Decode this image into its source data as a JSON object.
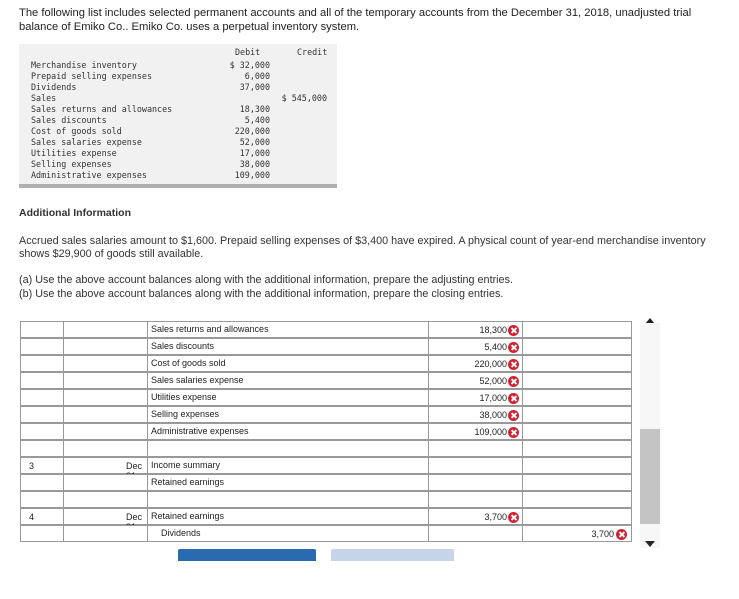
{
  "intro": "The following list includes selected permanent accounts and all of the temporary accounts from the December 31, 2018, unadjusted trial balance of Emiko Co.. Emiko Co. uses a perpetual inventory system.",
  "trial_balance": {
    "debit_header": "Debit",
    "credit_header": "Credit",
    "rows": [
      {
        "account": "Merchandise inventory",
        "debit": "$ 32,000",
        "credit": ""
      },
      {
        "account": "Prepaid selling expenses",
        "debit": "6,000",
        "credit": ""
      },
      {
        "account": "Dividends",
        "debit": "37,000",
        "credit": ""
      },
      {
        "account": "Sales",
        "debit": "",
        "credit": "$ 545,000"
      },
      {
        "account": "Sales returns and allowances",
        "debit": "18,300",
        "credit": ""
      },
      {
        "account": "Sales discounts",
        "debit": "5,400",
        "credit": ""
      },
      {
        "account": "Cost of goods sold",
        "debit": "220,000",
        "credit": ""
      },
      {
        "account": "Sales salaries expense",
        "debit": "52,000",
        "credit": ""
      },
      {
        "account": "Utilities expense",
        "debit": "17,000",
        "credit": ""
      },
      {
        "account": "Selling expenses",
        "debit": "38,000",
        "credit": ""
      },
      {
        "account": "Administrative expenses",
        "debit": "109,000",
        "credit": ""
      }
    ]
  },
  "additional": {
    "title": "Additional Information",
    "text": "Accrued sales salaries amount to $1,600. Prepaid selling expenses of $3,400 have expired. A physical count of year-end merchandise inventory shows $29,900 of goods still available.",
    "q_a": "(a) Use the above account balances along with the additional information, prepare the adjusting entries.",
    "q_b": "(b) Use the above account balances along with the additional information, prepare the closing entries."
  },
  "journal": {
    "rows": [
      {
        "no": "",
        "date": "",
        "account": "Sales returns and allowances",
        "indent": false,
        "status": "correct",
        "debit": "18,300",
        "debit_status": "incorrect",
        "credit": "",
        "credit_status": ""
      },
      {
        "no": "",
        "date": "",
        "account": "Sales discounts",
        "indent": false,
        "status": "correct",
        "debit": "5,400",
        "debit_status": "incorrect",
        "credit": "",
        "credit_status": ""
      },
      {
        "no": "",
        "date": "",
        "account": "Cost of goods sold",
        "indent": false,
        "status": "correct",
        "debit": "220,000",
        "debit_status": "incorrect",
        "credit": "",
        "credit_status": ""
      },
      {
        "no": "",
        "date": "",
        "account": "Sales salaries expense",
        "indent": false,
        "status": "correct",
        "debit": "52,000",
        "debit_status": "incorrect",
        "credit": "",
        "credit_status": ""
      },
      {
        "no": "",
        "date": "",
        "account": "Utilities expense",
        "indent": false,
        "status": "correct",
        "debit": "17,000",
        "debit_status": "incorrect",
        "credit": "",
        "credit_status": ""
      },
      {
        "no": "",
        "date": "",
        "account": "Selling expenses",
        "indent": false,
        "status": "correct",
        "debit": "38,000",
        "debit_status": "incorrect",
        "credit": "",
        "credit_status": ""
      },
      {
        "no": "",
        "date": "",
        "account": "Administrative expenses",
        "indent": false,
        "status": "correct",
        "debit": "109,000",
        "debit_status": "incorrect",
        "credit": "",
        "credit_status": ""
      },
      {
        "no": "",
        "date": "",
        "account": "",
        "indent": false,
        "status": "",
        "debit": "",
        "debit_status": "",
        "credit": "",
        "credit_status": ""
      },
      {
        "no": "3",
        "date": "Dec 31",
        "account": "Income summary",
        "indent": false,
        "status": "correct",
        "debit": "",
        "debit_status": "",
        "credit": "",
        "credit_status": ""
      },
      {
        "no": "",
        "date": "",
        "account": "Retained earnings",
        "indent": false,
        "status": "correct",
        "debit": "",
        "debit_status": "",
        "credit": "",
        "credit_status": ""
      },
      {
        "no": "",
        "date": "",
        "account": "",
        "indent": false,
        "status": "",
        "debit": "",
        "debit_status": "",
        "credit": "",
        "credit_status": ""
      },
      {
        "no": "4",
        "date": "Dec 31",
        "account": "Retained earnings",
        "indent": false,
        "status": "correct",
        "debit": "3,700",
        "debit_status": "incorrect",
        "credit": "",
        "credit_status": ""
      },
      {
        "no": "",
        "date": "",
        "account": "Dividends",
        "indent": true,
        "status": "correct",
        "debit": "",
        "debit_status": "",
        "credit": "3,700",
        "credit_status": "incorrect"
      }
    ]
  }
}
